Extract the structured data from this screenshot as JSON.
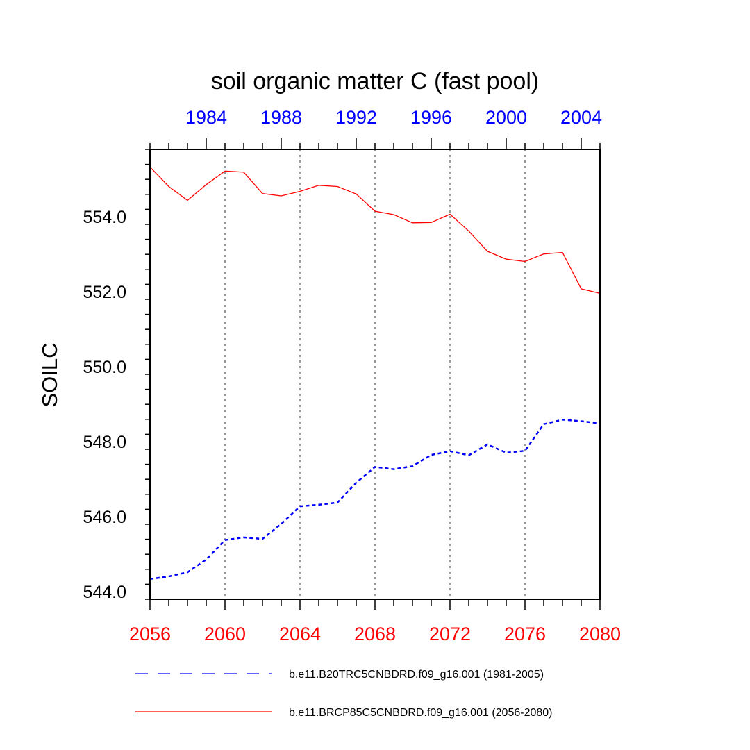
{
  "chart_data": {
    "type": "line",
    "title": "soil organic matter C (fast pool)",
    "ylabel": "SOILC",
    "ylim": [
      543.8,
      555.8
    ],
    "y_ticks": [
      "544.0",
      "546.0",
      "548.0",
      "550.0",
      "552.0",
      "554.0"
    ],
    "x_bottom": {
      "range": [
        2056,
        2080
      ],
      "ticks": [
        "2056",
        "2060",
        "2064",
        "2068",
        "2072",
        "2076",
        "2080"
      ],
      "color": "#ff0000"
    },
    "x_top": {
      "range": [
        1981,
        2005
      ],
      "ticks": [
        "1984",
        "1988",
        "1992",
        "1996",
        "2000",
        "2004"
      ],
      "color": "#0000ff"
    },
    "grid": "vertical dotted at bottom-axis major ticks",
    "legend_position": "bottom",
    "series": [
      {
        "name": "b.e11.B20TRC5CNBDRD.f09_g16.001 (1981-2005)",
        "color": "#0000ff",
        "dash": "dashed",
        "axis": "top",
        "x": [
          1981,
          1982,
          1983,
          1984,
          1985,
          1986,
          1987,
          1988,
          1989,
          1990,
          1991,
          1992,
          1993,
          1994,
          1995,
          1996,
          1997,
          1998,
          1999,
          2000,
          2001,
          2002,
          2003,
          2004,
          2005
        ],
        "values": [
          544.34,
          544.41,
          544.52,
          544.86,
          545.38,
          545.45,
          545.41,
          545.81,
          546.28,
          546.32,
          546.38,
          546.91,
          547.33,
          547.27,
          547.35,
          547.65,
          547.75,
          547.64,
          547.93,
          547.71,
          547.76,
          548.47,
          548.59,
          548.55,
          548.49
        ]
      },
      {
        "name": "b.e11.BRCP85C5CNBDRD.f09_g16.001 (2056-2080)",
        "color": "#ff0000",
        "dash": "solid",
        "axis": "bottom",
        "x": [
          2056,
          2057,
          2058,
          2059,
          2060,
          2061,
          2062,
          2063,
          2064,
          2065,
          2066,
          2067,
          2068,
          2069,
          2070,
          2071,
          2072,
          2073,
          2074,
          2075,
          2076,
          2077,
          2078,
          2079,
          2080
        ],
        "values": [
          555.33,
          554.81,
          554.44,
          554.86,
          555.22,
          555.19,
          554.62,
          554.56,
          554.68,
          554.84,
          554.81,
          554.61,
          554.15,
          554.06,
          553.84,
          553.85,
          554.07,
          553.62,
          553.08,
          552.87,
          552.81,
          553.01,
          553.05,
          552.08,
          551.96
        ]
      }
    ]
  }
}
